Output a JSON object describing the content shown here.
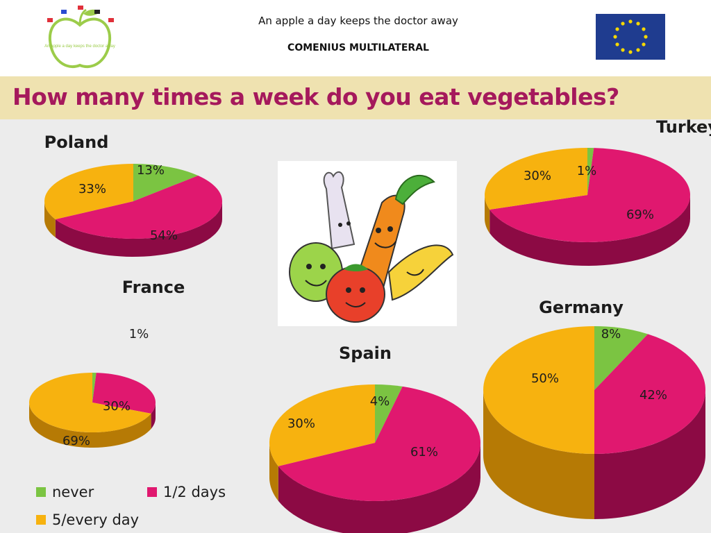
{
  "header": {
    "line1": "An apple a day keeps the doctor away",
    "line2": "COMENIUS MULTILATERAL"
  },
  "title": "How many times a week do you eat vegetables?",
  "logo": {
    "icon": "apple-logo-icon",
    "text": "An apple a day keeps the doctor away"
  },
  "eu_flag": {
    "icon": "eu-flag-icon"
  },
  "illustration": {
    "icon": "vegetables-cartoon-icon"
  },
  "colors": {
    "never": "#7bc442",
    "days12": "#e0186f",
    "everyday": "#f7b20f",
    "never_dark": "#4c8a22",
    "days12_dark": "#8c0a44",
    "everyday_dark": "#b67a05"
  },
  "legend": [
    {
      "key": "never",
      "label": "never"
    },
    {
      "key": "days12",
      "label": "1/2 days"
    },
    {
      "key": "everyday",
      "label": "5/every day"
    }
  ],
  "chart_data": [
    {
      "type": "pie",
      "title": "Poland",
      "categories": [
        "never",
        "1/2 days",
        "5/every day"
      ],
      "values": [
        13,
        54,
        33
      ],
      "labels": [
        "13%",
        "54%",
        "33%"
      ]
    },
    {
      "type": "pie",
      "title": "Turkey",
      "categories": [
        "never",
        "1/2 days",
        "5/every day"
      ],
      "values": [
        1,
        69,
        30
      ],
      "labels": [
        "1%",
        "69%",
        "30%"
      ]
    },
    {
      "type": "pie",
      "title": "France",
      "categories": [
        "never",
        "1/2 days",
        "5/every day"
      ],
      "values": [
        1,
        30,
        69
      ],
      "labels": [
        "1%",
        "30%",
        "69%"
      ]
    },
    {
      "type": "pie",
      "title": "Spain",
      "categories": [
        "never",
        "1/2 days",
        "5/every day"
      ],
      "values": [
        4,
        61,
        30
      ],
      "labels": [
        "4%",
        "61%",
        "30%"
      ]
    },
    {
      "type": "pie",
      "title": "Germany",
      "categories": [
        "never",
        "1/2 days",
        "5/every day"
      ],
      "values": [
        8,
        42,
        50
      ],
      "labels": [
        "8%",
        "42%",
        "50%"
      ]
    }
  ]
}
